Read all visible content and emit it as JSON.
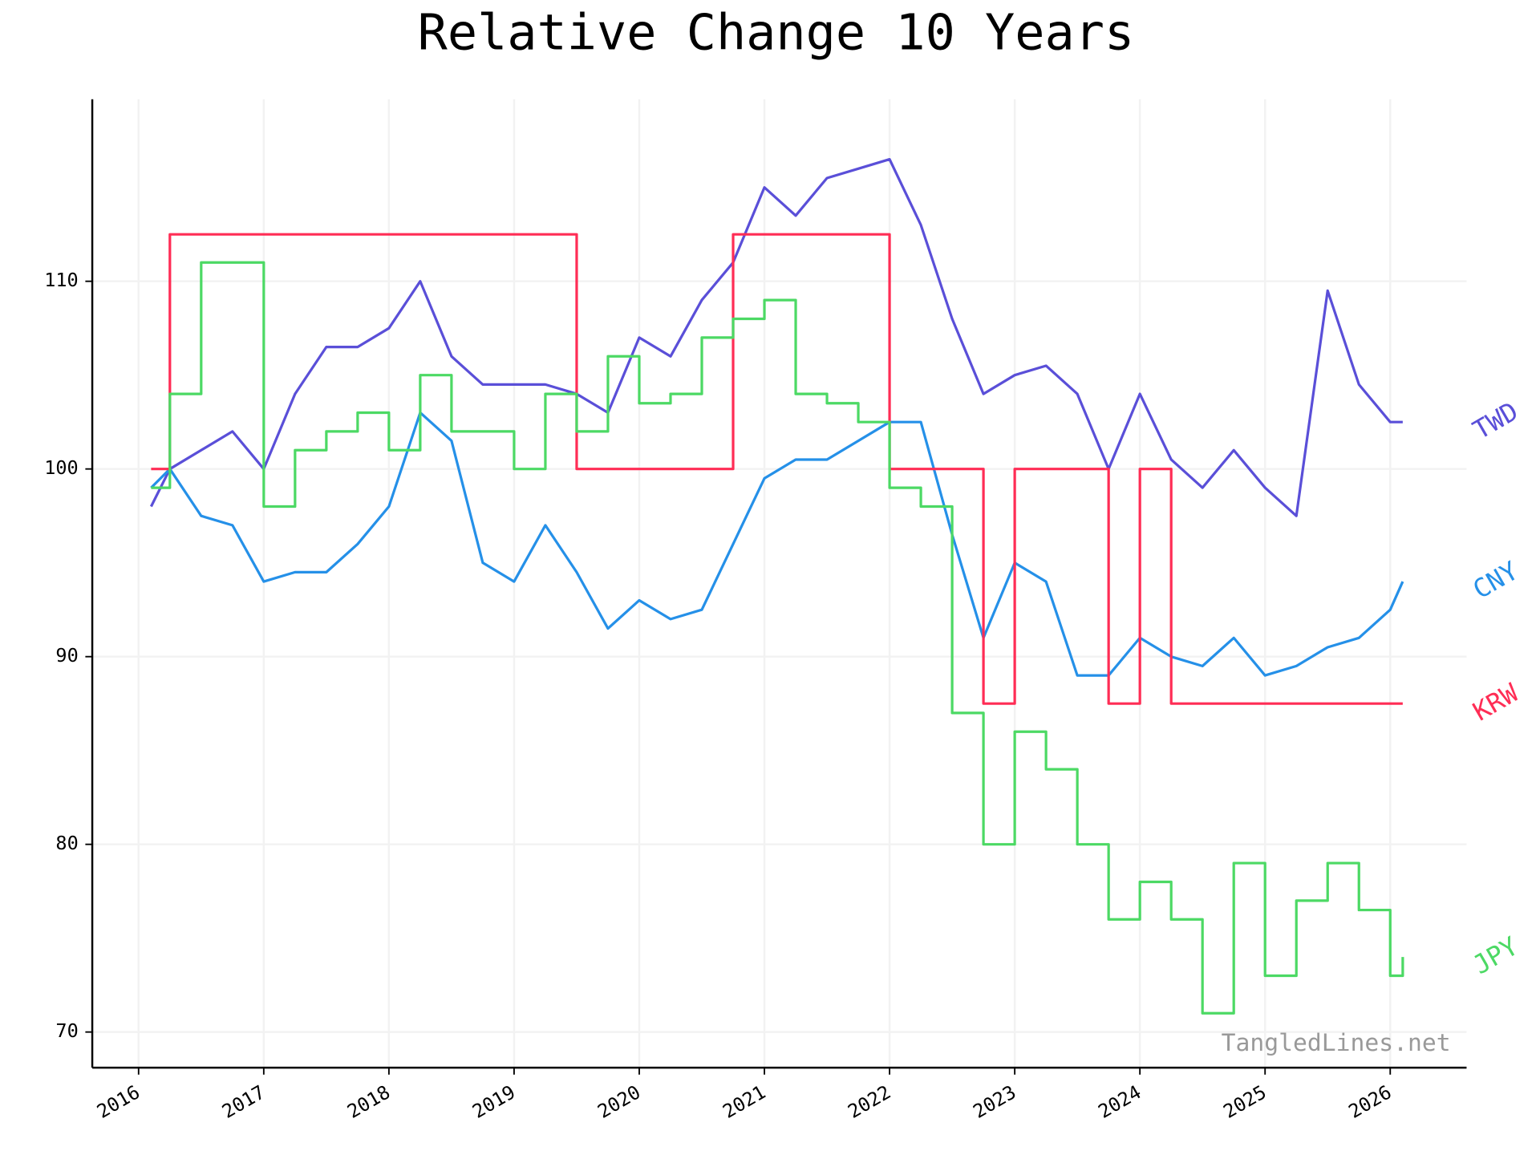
{
  "chart_data": {
    "type": "line",
    "title": "Relative Change 10 Years",
    "watermark": "TangledLines.net",
    "x": [
      2016.1,
      2016.25,
      2016.5,
      2016.75,
      2017.0,
      2017.25,
      2017.5,
      2017.75,
      2018.0,
      2018.25,
      2018.5,
      2018.75,
      2019.0,
      2019.25,
      2019.5,
      2019.75,
      2020.0,
      2020.25,
      2020.5,
      2020.75,
      2021.0,
      2021.25,
      2021.5,
      2021.75,
      2022.0,
      2022.25,
      2022.5,
      2022.75,
      2023.0,
      2023.25,
      2023.5,
      2023.75,
      2024.0,
      2024.25,
      2024.5,
      2024.75,
      2025.0,
      2025.25,
      2025.5,
      2025.75,
      2026.0,
      2026.1
    ],
    "series": [
      {
        "name": "TWD",
        "color": "#5a4fd8",
        "values": [
          98,
          100,
          101,
          102,
          100,
          104,
          106.5,
          106.5,
          107.5,
          110,
          106,
          104.5,
          104.5,
          104.5,
          104,
          103,
          107,
          106,
          109,
          111,
          115,
          113.5,
          115.5,
          116,
          116.5,
          113,
          108,
          104,
          105,
          105.5,
          104,
          100,
          104,
          100.5,
          99,
          101,
          99,
          97.5,
          109.5,
          104.5,
          102.5,
          102.5
        ]
      },
      {
        "name": "CNY",
        "color": "#2590e8",
        "values": [
          99,
          100,
          97.5,
          97,
          94,
          94.5,
          94.5,
          96,
          98,
          103,
          101.5,
          95,
          94,
          97,
          94.5,
          91.5,
          93,
          92,
          92.5,
          96,
          99.5,
          100.5,
          100.5,
          101.5,
          102.5,
          102.5,
          96.5,
          91,
          95,
          94,
          89,
          89,
          91,
          90,
          89.5,
          91,
          89,
          89.5,
          90.5,
          91,
          92.5,
          94
        ]
      },
      {
        "name": "KRW",
        "color": "#ff2d55",
        "step": true,
        "values": [
          100,
          112.5,
          112.5,
          112.5,
          112.5,
          112.5,
          112.5,
          112.5,
          112.5,
          112.5,
          112.5,
          112.5,
          112.5,
          112.5,
          100,
          100,
          100,
          100,
          100,
          112.5,
          112.5,
          112.5,
          112.5,
          112.5,
          100,
          100,
          100,
          87.5,
          100,
          100,
          100,
          87.5,
          100,
          87.5,
          87.5,
          87.5,
          87.5,
          87.5,
          87.5,
          87.5,
          87.5,
          87.5
        ]
      },
      {
        "name": "JPY",
        "color": "#4cd964",
        "step": true,
        "values": [
          99,
          104,
          111,
          111,
          98,
          101,
          102,
          103,
          101,
          105,
          102,
          102,
          100,
          104,
          102,
          106,
          103.5,
          104,
          107,
          108,
          109,
          104,
          103.5,
          102.5,
          99,
          98,
          87,
          80,
          86,
          84,
          80,
          76,
          78,
          76,
          71,
          79,
          73,
          77,
          79,
          76.5,
          73,
          74
        ]
      }
    ],
    "xlim": [
      2015.63,
      2026.61
    ],
    "ylim": [
      68.1,
      119.7
    ],
    "xticks": [
      2016,
      2017,
      2018,
      2019,
      2020,
      2021,
      2022,
      2023,
      2024,
      2025,
      2026
    ],
    "yticks": [
      70,
      80,
      90,
      100,
      110
    ],
    "grid": true
  }
}
